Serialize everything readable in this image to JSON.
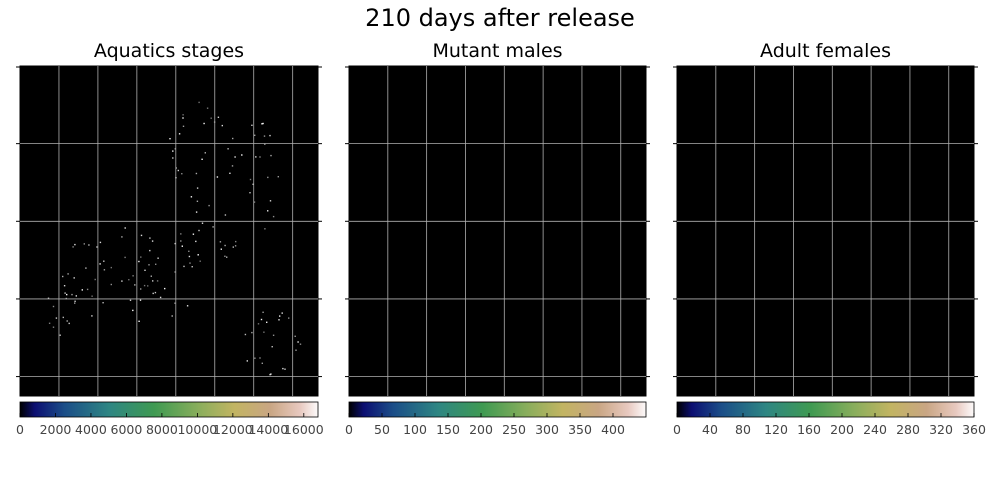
{
  "figure": {
    "title": "210 days after release"
  },
  "chart_data": [
    {
      "type": "heatmap",
      "title": "Aquatics stages",
      "colormap": "gist_earth",
      "background_color": "#000000",
      "grid": true,
      "grid_color": "#b0b0b0",
      "grid_x_lines": 7,
      "grid_y_lines": 4,
      "axis_tick_labels_visible": false,
      "colorbar": {
        "orientation": "horizontal",
        "range": [
          0,
          16800
        ],
        "ticks": [
          0,
          2000,
          4000,
          6000,
          8000,
          10000,
          12000,
          14000,
          16000
        ],
        "tick_labels": [
          "0",
          "2000",
          "4000",
          "6000",
          "8000",
          "10000",
          "12000",
          "14000",
          "16000"
        ]
      },
      "content": "sparse scattered low-value speckles on black field"
    },
    {
      "type": "heatmap",
      "title": "Mutant males",
      "colormap": "gist_earth",
      "background_color": "#000000",
      "grid": true,
      "grid_color": "#b0b0b0",
      "grid_x_lines": 7,
      "grid_y_lines": 4,
      "axis_tick_labels_visible": false,
      "colorbar": {
        "orientation": "horizontal",
        "range": [
          0,
          450
        ],
        "ticks": [
          0,
          50,
          100,
          150,
          200,
          250,
          300,
          350,
          400
        ],
        "tick_labels": [
          "0",
          "50",
          "100",
          "150",
          "200",
          "250",
          "300",
          "350",
          "400"
        ]
      },
      "content": "uniformly black field"
    },
    {
      "type": "heatmap",
      "title": "Adult females",
      "colormap": "gist_earth",
      "background_color": "#000000",
      "grid": true,
      "grid_color": "#b0b0b0",
      "grid_x_lines": 7,
      "grid_y_lines": 4,
      "axis_tick_labels_visible": false,
      "colorbar": {
        "orientation": "horizontal",
        "range": [
          0,
          360
        ],
        "ticks": [
          0,
          40,
          80,
          120,
          160,
          200,
          240,
          280,
          320,
          360
        ],
        "tick_labels": [
          "0",
          "40",
          "80",
          "120",
          "160",
          "200",
          "240",
          "280",
          "320",
          "360"
        ]
      },
      "content": "uniformly black field"
    }
  ]
}
